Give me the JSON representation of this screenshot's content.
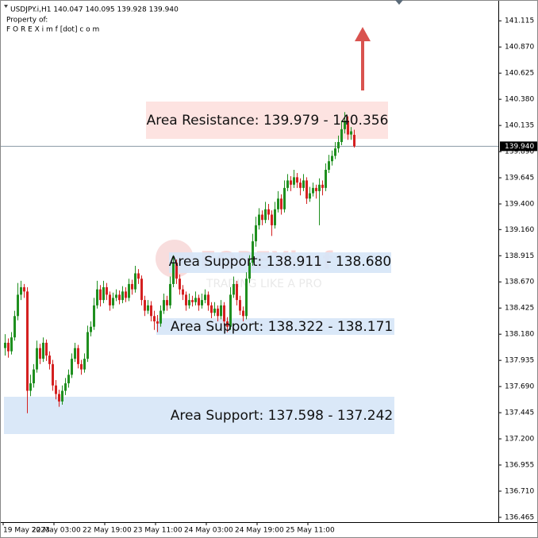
{
  "header": {
    "symbol_line": "USDJPY.i,H1  140.047 140.095 139.928 139.940",
    "property": "Property of:",
    "site": "F O R E X i m f [dot] c o m"
  },
  "watermark": {
    "brand": "FOREXimf",
    "slogan": "TRADING LIKE A PRO"
  },
  "chart_data": {
    "type": "candlestick",
    "ylim": [
      136.42,
      141.31
    ],
    "yticks": [
      141.115,
      {
        "value": 140.87,
        "label": "140.870"
      },
      140.625,
      {
        "value": 140.38,
        "label": "140.380"
      },
      140.135,
      {
        "value": 139.89,
        "label": "139.890"
      },
      139.645,
      {
        "value": 139.4,
        "label": "139.400"
      },
      {
        "value": 139.16,
        "label": "139.160"
      },
      138.915,
      {
        "value": 138.67,
        "label": "138.670"
      },
      138.425,
      {
        "value": 138.18,
        "label": "138.180"
      },
      137.935,
      {
        "value": 137.69,
        "label": "137.690"
      },
      137.445,
      {
        "value": 137.2,
        "label": "137.200"
      },
      136.955,
      {
        "value": 136.71,
        "label": "136.710"
      },
      136.465
    ],
    "x_labels": [
      "19 May 2023",
      "22 May 03:00",
      "22 May 19:00",
      "23 May 11:00",
      "24 May 03:00",
      "24 May 19:00",
      "25 May 11:00"
    ],
    "up_color": "#1f8f1f",
    "down_color": "#d42020",
    "current_price": {
      "value": 139.94,
      "label": "139.940"
    },
    "annotations": [
      "Area Resistance: 139.979 - 140.356",
      "Area Support: 138.911 - 138.680",
      "Area Support: 138.322 - 138.171",
      "Area Support: 137.598 - 137.242"
    ],
    "ohlc": [
      [
        138.05,
        138.18,
        137.98,
        138.1
      ],
      [
        138.1,
        138.14,
        137.96,
        138.02
      ],
      [
        138.02,
        138.2,
        137.99,
        138.15
      ],
      [
        138.15,
        138.4,
        138.12,
        138.35
      ],
      [
        138.35,
        138.66,
        138.31,
        138.55
      ],
      [
        138.55,
        138.68,
        138.5,
        138.62
      ],
      [
        138.62,
        138.65,
        138.52,
        138.58
      ],
      [
        138.58,
        138.62,
        137.44,
        137.65
      ],
      [
        137.65,
        137.8,
        137.6,
        137.72
      ],
      [
        137.72,
        137.9,
        137.68,
        137.85
      ],
      [
        137.85,
        138.12,
        137.82,
        138.05
      ],
      [
        138.05,
        138.09,
        137.9,
        137.95
      ],
      [
        137.95,
        138.15,
        137.92,
        138.1
      ],
      [
        138.1,
        138.13,
        137.93,
        137.98
      ],
      [
        137.98,
        138.02,
        137.85,
        137.9
      ],
      [
        137.9,
        137.94,
        137.65,
        137.7
      ],
      [
        137.7,
        137.75,
        137.57,
        137.62
      ],
      [
        137.62,
        137.66,
        137.5,
        137.55
      ],
      [
        137.55,
        137.7,
        137.52,
        137.65
      ],
      [
        137.65,
        137.77,
        137.61,
        137.72
      ],
      [
        137.72,
        137.85,
        137.68,
        137.8
      ],
      [
        137.8,
        138.0,
        137.77,
        137.95
      ],
      [
        137.95,
        138.1,
        137.92,
        138.05
      ],
      [
        138.05,
        138.08,
        137.86,
        137.9
      ],
      [
        137.9,
        137.94,
        137.8,
        137.85
      ],
      [
        137.85,
        138.0,
        137.82,
        137.95
      ],
      [
        137.95,
        138.26,
        137.92,
        138.2
      ],
      [
        138.2,
        138.3,
        138.16,
        138.25
      ],
      [
        138.25,
        138.52,
        138.22,
        138.45
      ],
      [
        138.45,
        138.68,
        138.42,
        138.6
      ],
      [
        138.6,
        138.64,
        138.44,
        138.5
      ],
      [
        138.5,
        138.68,
        138.47,
        138.62
      ],
      [
        138.62,
        138.66,
        138.5,
        138.55
      ],
      [
        138.55,
        138.58,
        138.4,
        138.45
      ],
      [
        138.45,
        138.57,
        138.42,
        138.52
      ],
      [
        138.52,
        138.6,
        138.49,
        138.55
      ],
      [
        138.55,
        138.59,
        138.46,
        138.5
      ],
      [
        138.5,
        138.63,
        138.47,
        138.58
      ],
      [
        138.58,
        138.62,
        138.48,
        138.52
      ],
      [
        138.52,
        138.7,
        138.49,
        138.65
      ],
      [
        138.65,
        138.69,
        138.55,
        138.6
      ],
      [
        138.6,
        138.82,
        138.57,
        138.75
      ],
      [
        138.75,
        138.79,
        138.65,
        138.7
      ],
      [
        138.7,
        138.73,
        138.45,
        138.5
      ],
      [
        138.5,
        138.54,
        138.35,
        138.4
      ],
      [
        138.4,
        138.5,
        138.37,
        138.45
      ],
      [
        138.45,
        138.49,
        138.3,
        138.35
      ],
      [
        138.35,
        138.4,
        138.22,
        138.3
      ],
      [
        138.3,
        138.36,
        138.2,
        138.28
      ],
      [
        138.28,
        138.45,
        138.25,
        138.4
      ],
      [
        138.4,
        138.56,
        138.37,
        138.5
      ],
      [
        138.5,
        138.54,
        138.4,
        138.45
      ],
      [
        138.45,
        138.72,
        138.42,
        138.65
      ],
      [
        138.65,
        138.92,
        138.62,
        138.85
      ],
      [
        138.85,
        138.88,
        138.65,
        138.7
      ],
      [
        138.7,
        138.74,
        138.55,
        138.6
      ],
      [
        138.6,
        138.64,
        138.5,
        138.55
      ],
      [
        138.55,
        138.58,
        138.4,
        138.45
      ],
      [
        138.45,
        138.56,
        138.42,
        138.5
      ],
      [
        138.5,
        138.54,
        138.44,
        138.48
      ],
      [
        138.48,
        138.58,
        138.45,
        138.52
      ],
      [
        138.52,
        138.55,
        138.4,
        138.45
      ],
      [
        138.45,
        138.56,
        138.42,
        138.5
      ],
      [
        138.5,
        138.6,
        138.47,
        138.55
      ],
      [
        138.55,
        138.58,
        138.4,
        138.45
      ],
      [
        138.45,
        138.48,
        138.33,
        138.38
      ],
      [
        138.38,
        138.48,
        138.35,
        138.42
      ],
      [
        138.42,
        138.45,
        138.3,
        138.35
      ],
      [
        138.35,
        138.5,
        138.32,
        138.45
      ],
      [
        138.45,
        138.48,
        138.26,
        138.3
      ],
      [
        138.3,
        138.34,
        138.2,
        138.25
      ],
      [
        138.25,
        138.62,
        138.22,
        138.55
      ],
      [
        138.55,
        138.72,
        138.52,
        138.65
      ],
      [
        138.65,
        138.68,
        138.45,
        138.5
      ],
      [
        138.5,
        138.54,
        138.36,
        138.4
      ],
      [
        138.4,
        138.44,
        138.3,
        138.35
      ],
      [
        138.35,
        138.76,
        138.32,
        138.7
      ],
      [
        138.7,
        138.92,
        138.66,
        138.85
      ],
      [
        138.85,
        139.12,
        138.82,
        139.05
      ],
      [
        139.05,
        139.28,
        139.0,
        139.2
      ],
      [
        139.2,
        139.36,
        139.16,
        139.3
      ],
      [
        139.3,
        139.34,
        139.2,
        139.25
      ],
      [
        139.25,
        139.42,
        139.22,
        139.35
      ],
      [
        139.35,
        139.4,
        139.25,
        139.3
      ],
      [
        139.3,
        139.34,
        139.1,
        139.2
      ],
      [
        139.2,
        139.42,
        139.17,
        139.35
      ],
      [
        139.35,
        139.52,
        139.32,
        139.45
      ],
      [
        139.45,
        139.49,
        139.3,
        139.35
      ],
      [
        139.35,
        139.62,
        139.32,
        139.55
      ],
      [
        139.55,
        139.68,
        139.52,
        139.62
      ],
      [
        139.62,
        139.66,
        139.52,
        139.58
      ],
      [
        139.58,
        139.72,
        139.55,
        139.65
      ],
      [
        139.65,
        139.69,
        139.55,
        139.6
      ],
      [
        139.6,
        139.64,
        139.48,
        139.55
      ],
      [
        139.55,
        139.68,
        139.52,
        139.62
      ],
      [
        139.62,
        139.65,
        139.4,
        139.45
      ],
      [
        139.45,
        139.56,
        139.42,
        139.5
      ],
      [
        139.5,
        139.6,
        139.47,
        139.55
      ],
      [
        139.55,
        139.58,
        139.45,
        139.52
      ],
      [
        139.52,
        139.64,
        139.2,
        139.58
      ],
      [
        139.58,
        139.62,
        139.48,
        139.55
      ],
      [
        139.55,
        139.78,
        139.52,
        139.72
      ],
      [
        139.72,
        139.86,
        139.69,
        139.8
      ],
      [
        139.8,
        139.9,
        139.76,
        139.85
      ],
      [
        139.85,
        139.98,
        139.82,
        139.92
      ],
      [
        139.92,
        140.04,
        139.88,
        139.98
      ],
      [
        139.98,
        140.18,
        139.95,
        140.1
      ],
      [
        140.1,
        140.26,
        140.06,
        140.18
      ],
      [
        140.18,
        140.22,
        140.0,
        140.05
      ],
      [
        140.05,
        140.12,
        140.0,
        140.08
      ],
      [
        140.047,
        140.095,
        139.928,
        139.94
      ]
    ]
  }
}
